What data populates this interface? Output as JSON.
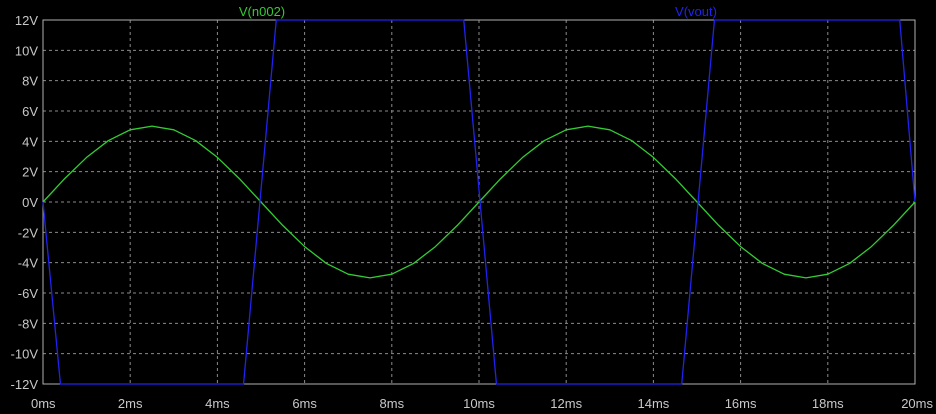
{
  "chart_data": {
    "type": "line",
    "title": "",
    "xlabel": "",
    "ylabel": "",
    "xlim": [
      0,
      20
    ],
    "ylim": [
      -12,
      12
    ],
    "grid": true,
    "legend_position": "top",
    "x_tick_labels": [
      "0ms",
      "2ms",
      "4ms",
      "6ms",
      "8ms",
      "10ms",
      "12ms",
      "14ms",
      "16ms",
      "18ms",
      "20ms"
    ],
    "x_ticks": [
      0,
      2,
      4,
      6,
      8,
      10,
      12,
      14,
      16,
      18,
      20
    ],
    "y_tick_labels": [
      "12V",
      "10V",
      "8V",
      "6V",
      "4V",
      "2V",
      "0V",
      "-2V",
      "-4V",
      "-6V",
      "-8V",
      "-10V",
      "-12V"
    ],
    "y_ticks": [
      12,
      10,
      8,
      6,
      4,
      2,
      0,
      -2,
      -4,
      -6,
      -8,
      -10,
      -12
    ],
    "background_color": "#000000",
    "series": [
      {
        "name": "V(n002)",
        "color": "#33cc33",
        "x": [
          0,
          0.5,
          1,
          1.5,
          2,
          2.5,
          3,
          3.5,
          4,
          4.5,
          5,
          5.5,
          6,
          6.5,
          7,
          7.5,
          8,
          8.5,
          9,
          9.5,
          10,
          10.5,
          11,
          11.5,
          12,
          12.5,
          13,
          13.5,
          14,
          14.5,
          15,
          15.5,
          16,
          16.5,
          17,
          17.5,
          18,
          18.5,
          19,
          19.5,
          20
        ],
        "y": [
          0,
          1.55,
          2.94,
          4.05,
          4.76,
          5,
          4.76,
          4.05,
          2.94,
          1.55,
          0,
          -1.55,
          -2.94,
          -4.05,
          -4.76,
          -5,
          -4.76,
          -4.05,
          -2.94,
          -1.55,
          0,
          1.55,
          2.94,
          4.05,
          4.76,
          5,
          4.76,
          4.05,
          2.94,
          1.55,
          0,
          -1.55,
          -2.94,
          -4.05,
          -4.76,
          -5,
          -4.76,
          -4.05,
          -2.94,
          -1.55,
          0
        ]
      },
      {
        "name": "V(vout)",
        "color": "#2222ee",
        "x": [
          0,
          0.4,
          4.6,
          5.35,
          9.65,
          10.4,
          14.65,
          15.4,
          19.65,
          20
        ],
        "y": [
          0,
          -12,
          -12,
          12,
          12,
          -12,
          -12,
          12,
          12,
          0
        ]
      }
    ]
  }
}
